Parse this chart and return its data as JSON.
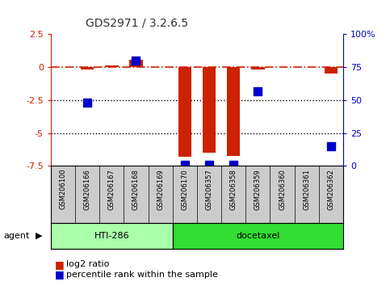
{
  "title": "GDS2971 / 3.2.6.5",
  "samples": [
    "GSM206100",
    "GSM206166",
    "GSM206167",
    "GSM206168",
    "GSM206169",
    "GSM206170",
    "GSM206357",
    "GSM206358",
    "GSM206359",
    "GSM206360",
    "GSM206361",
    "GSM206362"
  ],
  "log2_ratio": [
    0.0,
    -0.15,
    0.15,
    0.55,
    0.0,
    -6.8,
    -6.5,
    -6.75,
    -0.15,
    0.0,
    0.0,
    -0.5
  ],
  "percentile_rank": [
    null,
    48,
    null,
    80,
    null,
    1,
    1,
    1,
    57,
    null,
    null,
    15
  ],
  "groups": [
    {
      "label": "HTI-286",
      "start": 0,
      "end": 4,
      "color": "#AAFFAA"
    },
    {
      "label": "docetaxel",
      "start": 5,
      "end": 11,
      "color": "#33DD33"
    }
  ],
  "ylim": [
    -7.5,
    2.5
  ],
  "yticks_left": [
    -7.5,
    -5.0,
    -2.5,
    0.0,
    2.5
  ],
  "yticks_right": [
    0,
    25,
    50,
    75,
    100
  ],
  "hline_y": 0.0,
  "dotted_lines": [
    -2.5,
    -5.0
  ],
  "bar_color": "#CC2200",
  "marker_color": "#0000CC",
  "bar_width": 0.55,
  "marker_size": 55,
  "legend_log2_label": "log2 ratio",
  "legend_pct_label": "percentile rank within the sample",
  "agent_label": "agent",
  "sample_bg_color": "#CCCCCC",
  "plot_bg_color": "#ffffff",
  "title_color": "#333333",
  "left_axis_color": "#CC2200",
  "right_axis_color": "#0000CC"
}
